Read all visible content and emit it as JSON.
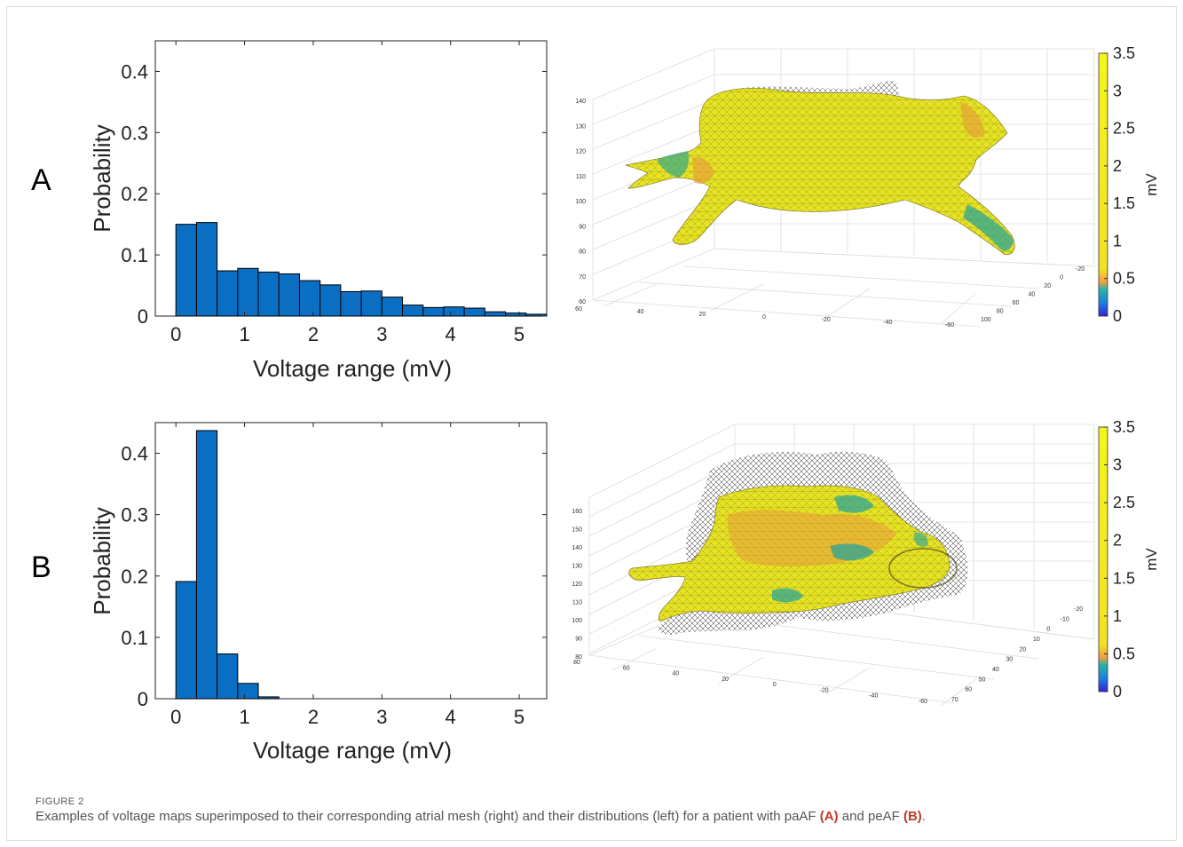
{
  "colors": {
    "bar": "#0a6ec2",
    "bar_edge": "#000000",
    "axis": "#222222"
  },
  "panels": [
    {
      "letter": "A",
      "histogram": {
        "type": "bar",
        "xlabel": "Voltage range (mV)",
        "ylabel": "Probability",
        "bin_width": 0.3,
        "bin_start": 0,
        "values": [
          0.15,
          0.153,
          0.074,
          0.078,
          0.072,
          0.069,
          0.058,
          0.051,
          0.04,
          0.041,
          0.031,
          0.018,
          0.014,
          0.015,
          0.013,
          0.007,
          0.005,
          0.003
        ],
        "xlim": [
          -0.3,
          5.4
        ],
        "ylim": [
          0,
          0.45
        ],
        "xticks": [
          0,
          1,
          2,
          3,
          4,
          5
        ],
        "yticks": [
          0,
          0.1,
          0.2,
          0.3,
          0.4
        ]
      },
      "mesh": {
        "zticks": [
          "60",
          "70",
          "80",
          "90",
          "100",
          "110",
          "120",
          "130",
          "140"
        ],
        "xticks": [
          "60",
          "40",
          "20",
          "0",
          "-20",
          "-40",
          "-60"
        ],
        "yticks": [
          "-20",
          "0",
          "20",
          "40",
          "60",
          "80",
          "100"
        ]
      },
      "colorbar": {
        "label": "mV",
        "ticks": [
          "0",
          "0.5",
          "1",
          "1.5",
          "2",
          "2.5",
          "3",
          "3.5"
        ],
        "range": [
          0,
          3.5
        ]
      }
    },
    {
      "letter": "B",
      "histogram": {
        "type": "bar",
        "xlabel": "Voltage range (mV)",
        "ylabel": "Probability",
        "bin_width": 0.3,
        "bin_start": 0,
        "values": [
          0.191,
          0.437,
          0.073,
          0.025,
          0.003
        ],
        "xlim": [
          -0.3,
          5.4
        ],
        "ylim": [
          0,
          0.45
        ],
        "xticks": [
          0,
          1,
          2,
          3,
          4,
          5
        ],
        "yticks": [
          0,
          0.1,
          0.2,
          0.3,
          0.4
        ]
      },
      "mesh": {
        "zticks": [
          "80",
          "90",
          "100",
          "110",
          "120",
          "130",
          "140",
          "150",
          "160"
        ],
        "xticks": [
          "80",
          "60",
          "40",
          "20",
          "0",
          "-20",
          "-40",
          "-60"
        ],
        "yticks": [
          "-20",
          "-10",
          "0",
          "10",
          "20",
          "30",
          "40",
          "50",
          "60",
          "70"
        ]
      },
      "colorbar": {
        "label": "mV",
        "ticks": [
          "0",
          "0.5",
          "1",
          "1.5",
          "2",
          "2.5",
          "3",
          "3.5"
        ],
        "range": [
          0,
          3.5
        ]
      }
    }
  ],
  "caption": {
    "label": "FIGURE 2",
    "text": "Examples of voltage maps superimposed to their corresponding atrial mesh (right) and their distributions (left) for a patient with paAF ",
    "ref_a": "(A)",
    "mid": " and peAF ",
    "ref_b": "(B)",
    "end": "."
  }
}
